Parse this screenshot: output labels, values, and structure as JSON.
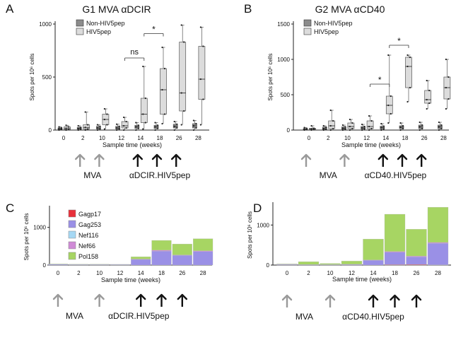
{
  "colors": {
    "non_hiv": "#8c8c8c",
    "hiv": "#dcdcdc",
    "arrow_grey": "#999999",
    "arrow_black": "#111111",
    "Gagp17": "#e8303a",
    "Gag253": "#9a90e6",
    "Nef116": "#a6d8f4",
    "Nef66": "#cf8ad6",
    "Pol158": "#a7d563"
  },
  "chart_data": [
    {
      "panel": "A",
      "type": "box",
      "title": "G1 MVA αDCIR",
      "xlabel": "Sample time (weeks)",
      "ylabel": "Spots per 10⁶ cells",
      "categories": [
        "0",
        "2",
        "10",
        "12",
        "14",
        "18",
        "26",
        "28"
      ],
      "ylim": [
        0,
        1000
      ],
      "yticks": [
        0,
        500,
        1000
      ],
      "legend": [
        "Non-HIV5pep",
        "HIV5pep"
      ],
      "series": [
        {
          "name": "Non-HIV5pep",
          "boxes": [
            {
              "min": 0,
              "q1": 5,
              "med": 12,
              "q3": 20,
              "max": 30
            },
            {
              "min": 0,
              "q1": 8,
              "med": 15,
              "q3": 25,
              "max": 40
            },
            {
              "min": 0,
              "q1": 10,
              "med": 20,
              "q3": 35,
              "max": 50
            },
            {
              "min": 0,
              "q1": 10,
              "med": 20,
              "q3": 35,
              "max": 55
            },
            {
              "min": 0,
              "q1": 15,
              "med": 30,
              "q3": 45,
              "max": 70
            },
            {
              "min": 0,
              "q1": 15,
              "med": 30,
              "q3": 45,
              "max": 70
            },
            {
              "min": 0,
              "q1": 20,
              "med": 35,
              "q3": 55,
              "max": 80
            },
            {
              "min": 0,
              "q1": 20,
              "med": 40,
              "q3": 60,
              "max": 90
            }
          ]
        },
        {
          "name": "HIV5pep",
          "boxes": [
            {
              "min": 0,
              "q1": 5,
              "med": 15,
              "q3": 30,
              "max": 45
            },
            {
              "min": 0,
              "q1": 10,
              "med": 25,
              "q3": 50,
              "max": 170
            },
            {
              "min": 10,
              "q1": 50,
              "med": 100,
              "q3": 150,
              "max": 200
            },
            {
              "min": 0,
              "q1": 20,
              "med": 40,
              "q3": 80,
              "max": 120
            },
            {
              "min": 10,
              "q1": 70,
              "med": 150,
              "q3": 300,
              "max": 600
            },
            {
              "min": 60,
              "q1": 150,
              "med": 380,
              "q3": 580,
              "max": 780
            },
            {
              "min": 50,
              "q1": 180,
              "med": 350,
              "q3": 830,
              "max": 990
            },
            {
              "min": 50,
              "q1": 290,
              "med": 480,
              "q3": 790,
              "max": 970
            }
          ]
        }
      ],
      "annotations": [
        {
          "text": "ns",
          "from": "12",
          "to": "14",
          "y": 680
        },
        {
          "text": "*",
          "from": "14",
          "to": "18",
          "y": 910
        }
      ],
      "arrows": {
        "grey": [
          "2",
          "10"
        ],
        "black": [
          "14",
          "18",
          "26"
        ],
        "labels": [
          {
            "text": "MVA",
            "at": 1.5
          },
          {
            "text": "αDCIR.HIV5pep",
            "at": 5
          }
        ]
      }
    },
    {
      "panel": "B",
      "type": "box",
      "title": "G2 MVA αCD40",
      "xlabel": "Sample time (weeks)",
      "ylabel": "Spots per 10⁶ cells",
      "categories": [
        "0",
        "2",
        "10",
        "12",
        "14",
        "18",
        "26",
        "28"
      ],
      "ylim": [
        0,
        1500
      ],
      "yticks": [
        0,
        500,
        1000,
        1500
      ],
      "legend": [
        "Non-HIV5pep",
        "HIV5pep"
      ],
      "series": [
        {
          "name": "Non-HIV5pep",
          "boxes": [
            {
              "min": 0,
              "q1": 5,
              "med": 12,
              "q3": 20,
              "max": 35
            },
            {
              "min": 0,
              "q1": 10,
              "med": 20,
              "q3": 40,
              "max": 60
            },
            {
              "min": 0,
              "q1": 10,
              "med": 25,
              "q3": 45,
              "max": 70
            },
            {
              "min": 0,
              "q1": 15,
              "med": 30,
              "q3": 50,
              "max": 80
            },
            {
              "min": 0,
              "q1": 15,
              "med": 35,
              "q3": 55,
              "max": 90
            },
            {
              "min": 0,
              "q1": 20,
              "med": 40,
              "q3": 60,
              "max": 100
            },
            {
              "min": 0,
              "q1": 20,
              "med": 45,
              "q3": 70,
              "max": 110
            },
            {
              "min": 0,
              "q1": 20,
              "med": 45,
              "q3": 70,
              "max": 110
            }
          ]
        },
        {
          "name": "HIV5pep",
          "boxes": [
            {
              "min": 0,
              "q1": 5,
              "med": 15,
              "q3": 25,
              "max": 60
            },
            {
              "min": 0,
              "q1": 20,
              "med": 60,
              "q3": 130,
              "max": 280
            },
            {
              "min": 0,
              "q1": 20,
              "med": 50,
              "q3": 100,
              "max": 150
            },
            {
              "min": 0,
              "q1": 20,
              "med": 50,
              "q3": 130,
              "max": 200
            },
            {
              "min": 100,
              "q1": 230,
              "med": 350,
              "q3": 480,
              "max": 1060
            },
            {
              "min": 400,
              "q1": 600,
              "med": 900,
              "q3": 1030,
              "max": 1060
            },
            {
              "min": 300,
              "q1": 380,
              "med": 430,
              "q3": 560,
              "max": 700
            },
            {
              "min": 300,
              "q1": 440,
              "med": 600,
              "q3": 750,
              "max": 1000
            }
          ]
        }
      ],
      "annotations": [
        {
          "text": "*",
          "from": "12",
          "to": "14",
          "y": 650
        },
        {
          "text": "*",
          "from": "14",
          "to": "18",
          "y": 1200
        }
      ],
      "arrows": {
        "grey": [
          "0",
          "10"
        ],
        "black": [
          "14",
          "18",
          "26"
        ],
        "labels": [
          {
            "text": "MVA",
            "at": 1
          },
          {
            "text": "αCD40.HIV5pep",
            "at": 4.5
          }
        ]
      }
    },
    {
      "panel": "C",
      "type": "stacked_bar",
      "xlabel": "Sample time (weeks)",
      "ylabel": "Spots per 10⁶ cells",
      "categories": [
        "0",
        "2",
        "10",
        "12",
        "14",
        "18",
        "26",
        "28"
      ],
      "ylim": [
        0,
        1500
      ],
      "yticks": [
        0,
        1000
      ],
      "legend": [
        "Gagp17",
        "Gag253",
        "Nef116",
        "Nef66",
        "Pol158"
      ],
      "series": [
        {
          "name": "Gagp17",
          "values": [
            0,
            0,
            0,
            0,
            0,
            0,
            0,
            0
          ]
        },
        {
          "name": "Gag253",
          "values": [
            20,
            15,
            15,
            15,
            150,
            370,
            260,
            360
          ]
        },
        {
          "name": "Nef116",
          "values": [
            0,
            0,
            0,
            0,
            0,
            0,
            0,
            0
          ]
        },
        {
          "name": "Nef66",
          "values": [
            0,
            0,
            0,
            0,
            10,
            25,
            10,
            20
          ]
        },
        {
          "name": "Pol158",
          "values": [
            10,
            10,
            10,
            5,
            60,
            260,
            290,
            320
          ]
        }
      ],
      "arrows": {
        "grey": [
          "0",
          "10"
        ],
        "black": [
          "14",
          "18",
          "26"
        ],
        "labels": [
          {
            "text": "MVA",
            "at": 0.8
          },
          {
            "text": "αDCIR.HIV5pep",
            "at": 3.9
          }
        ]
      }
    },
    {
      "panel": "D",
      "type": "stacked_bar",
      "xlabel": "Sample time (weeks)",
      "ylabel": "Spots per 10⁶ cells",
      "categories": [
        "0",
        "2",
        "10",
        "12",
        "14",
        "18",
        "26",
        "28"
      ],
      "ylim": [
        0,
        1500
      ],
      "yticks": [
        0,
        1000
      ],
      "legend": [
        "Gagp17",
        "Gag253",
        "Nef116",
        "Nef66",
        "Pol158"
      ],
      "series": [
        {
          "name": "Gagp17",
          "values": [
            0,
            0,
            0,
            0,
            0,
            10,
            15,
            5
          ]
        },
        {
          "name": "Gag253",
          "values": [
            15,
            10,
            10,
            15,
            120,
            310,
            190,
            540
          ]
        },
        {
          "name": "Nef116",
          "values": [
            0,
            0,
            0,
            0,
            0,
            0,
            0,
            0
          ]
        },
        {
          "name": "Nef66",
          "values": [
            5,
            5,
            5,
            5,
            10,
            20,
            20,
            20
          ]
        },
        {
          "name": "Pol158",
          "values": [
            10,
            70,
            25,
            80,
            520,
            930,
            670,
            880
          ]
        }
      ],
      "arrows": {
        "grey": [
          "0",
          "10"
        ],
        "black": [
          "14",
          "18",
          "26"
        ],
        "labels": [
          {
            "text": "MVA",
            "at": 0.8
          },
          {
            "text": "αCD40.HIV5pep",
            "at": 4.0
          }
        ]
      }
    }
  ]
}
